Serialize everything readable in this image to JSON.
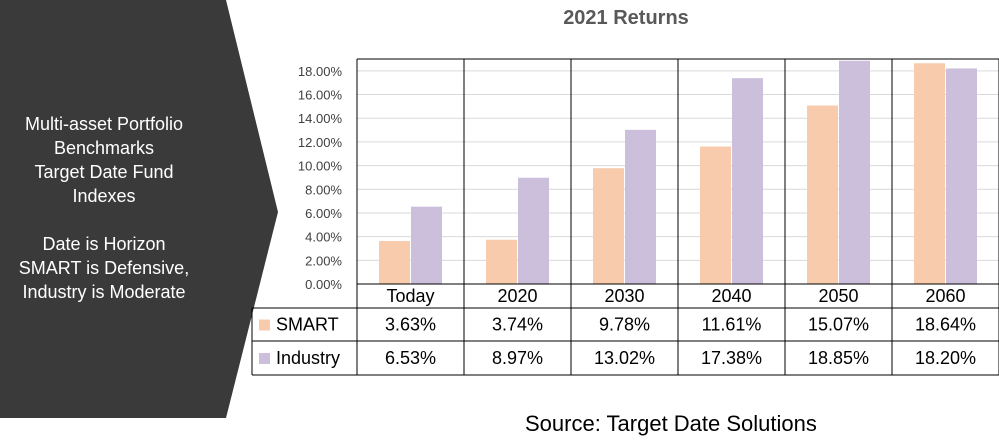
{
  "panel": {
    "lines": [
      "Multi-asset Portfolio",
      "Benchmarks",
      "Target Date Fund",
      "Indexes",
      "",
      "Date is Horizon",
      "SMART is Defensive,",
      "Industry is Moderate"
    ]
  },
  "source": "Source: Target Date Solutions",
  "colors": {
    "smart": "#f8cbad",
    "industry": "#cbbfdb",
    "panel": "#3a3a3a"
  },
  "chart_data": {
    "type": "bar",
    "title": "2021 Returns",
    "categories": [
      "Today",
      "2020",
      "2030",
      "2040",
      "2050",
      "2060"
    ],
    "series": [
      {
        "name": "SMART",
        "values": [
          3.63,
          3.74,
          9.78,
          11.61,
          15.07,
          18.64
        ],
        "labels": [
          "3.63%",
          "3.74%",
          "9.78%",
          "11.61%",
          "15.07%",
          "18.64%"
        ]
      },
      {
        "name": "Industry",
        "values": [
          6.53,
          8.97,
          13.02,
          17.38,
          18.85,
          18.2
        ],
        "labels": [
          "6.53%",
          "8.97%",
          "13.02%",
          "17.38%",
          "18.85%",
          "18.20%"
        ]
      }
    ],
    "yticks": [
      "0.00%",
      "2.00%",
      "4.00%",
      "6.00%",
      "8.00%",
      "10.00%",
      "12.00%",
      "14.00%",
      "16.00%",
      "18.00%"
    ],
    "ylim": [
      0,
      19
    ],
    "grid": true,
    "legend": "data-table"
  }
}
